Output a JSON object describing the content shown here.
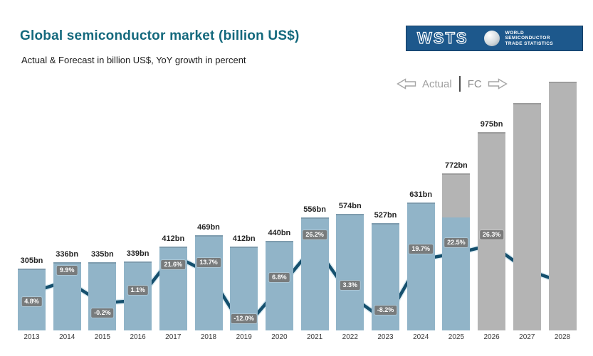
{
  "header": {
    "title": "Global semiconductor market (billion US$)",
    "subtitle": "Actual & Forecast in billion US$, YoY growth in percent"
  },
  "logo": {
    "wordmark": "WSTS",
    "caption_lines": [
      "WORLD",
      "SEMICONDUCTOR",
      "TRADE STATISTICS"
    ],
    "bg_color": "#1d588c"
  },
  "legend": {
    "actual_label": "Actual",
    "fc_label": "FC"
  },
  "colors": {
    "title": "#14697d",
    "actual_bar": "#91b4c8",
    "forecast_bar": "#b4b4b4",
    "line": "#15506e",
    "line_halo": "#bcd9e6",
    "marker": "#eef7fb",
    "pct_chip_bg": "#767676",
    "pct_chip_text": "#ffffff",
    "logo_bg": "#1d588c",
    "legend_text": "#9e9e9e"
  },
  "chart_data": {
    "type": "bar+line combo",
    "title": "Global semiconductor market (billion US$)",
    "subtitle": "Actual & Forecast in billion US$, YoY growth in percent",
    "unit": "billion US$",
    "axes_visible": false,
    "legend": [
      "Actual (left of divider)",
      "FC (right of divider)"
    ],
    "bar_series_name": "Market size (billion US$)",
    "line_series_name": "YoY growth (percent)",
    "points": [
      {
        "year": "2013",
        "value": 305,
        "value_label": "305bn",
        "growth": 4.8,
        "growth_label": "4.8%",
        "growth_label_pos": "below",
        "segment": "actual"
      },
      {
        "year": "2014",
        "value": 336,
        "value_label": "336bn",
        "growth": 9.9,
        "growth_label": "9.9%",
        "growth_label_pos": "above",
        "segment": "actual"
      },
      {
        "year": "2015",
        "value": 335,
        "value_label": "335bn",
        "growth": -0.2,
        "growth_label": "-0.2%",
        "growth_label_pos": "below",
        "segment": "actual"
      },
      {
        "year": "2016",
        "value": 339,
        "value_label": "339bn",
        "growth": 1.1,
        "growth_label": "1.1%",
        "growth_label_pos": "above",
        "segment": "actual"
      },
      {
        "year": "2017",
        "value": 412,
        "value_label": "412bn",
        "growth": 21.6,
        "growth_label": "21.6%",
        "growth_label_pos": "below",
        "segment": "actual"
      },
      {
        "year": "2018",
        "value": 469,
        "value_label": "469bn",
        "growth": 13.7,
        "growth_label": "13.7%",
        "growth_label_pos": "above",
        "segment": "actual"
      },
      {
        "year": "2019",
        "value": 412,
        "value_label": "412bn",
        "growth": -12.0,
        "growth_label": "-12.0%",
        "growth_label_pos": "above",
        "segment": "actual"
      },
      {
        "year": "2020",
        "value": 440,
        "value_label": "440bn",
        "growth": 6.8,
        "growth_label": "6.8%",
        "growth_label_pos": "above",
        "segment": "actual"
      },
      {
        "year": "2021",
        "value": 556,
        "value_label": "556bn",
        "growth": 26.2,
        "growth_label": "26.2%",
        "growth_label_pos": "above",
        "segment": "actual"
      },
      {
        "year": "2022",
        "value": 574,
        "value_label": "574bn",
        "growth": 3.3,
        "growth_label": "3.3%",
        "growth_label_pos": "above",
        "segment": "actual"
      },
      {
        "year": "2023",
        "value": 527,
        "value_label": "527bn",
        "growth": -8.2,
        "growth_label": "-8.2%",
        "growth_label_pos": "above",
        "segment": "actual"
      },
      {
        "year": "2024",
        "value": 631,
        "value_label": "631bn",
        "growth": 19.7,
        "growth_label": "19.7%",
        "growth_label_pos": "above",
        "segment": "actual"
      },
      {
        "year": "2025",
        "value": 772,
        "value_label": "772bn",
        "growth": 22.5,
        "growth_label": "22.5%",
        "growth_label_pos": "above",
        "segment": "split",
        "actual_fraction": 0.72
      },
      {
        "year": "2026",
        "value": 975,
        "value_label": "975bn",
        "growth": 26.3,
        "growth_label": "26.3%",
        "growth_label_pos": "above",
        "segment": "forecast"
      },
      {
        "year": "2027",
        "value": 1120,
        "value_label": "",
        "growth": 14.9,
        "growth_label": "",
        "growth_label_pos": "above",
        "segment": "forecast",
        "estimated": true
      },
      {
        "year": "2028",
        "value": 1225,
        "value_label": "",
        "growth": 9.4,
        "growth_label": "",
        "growth_label_pos": "above",
        "segment": "forecast",
        "estimated": true
      }
    ]
  }
}
